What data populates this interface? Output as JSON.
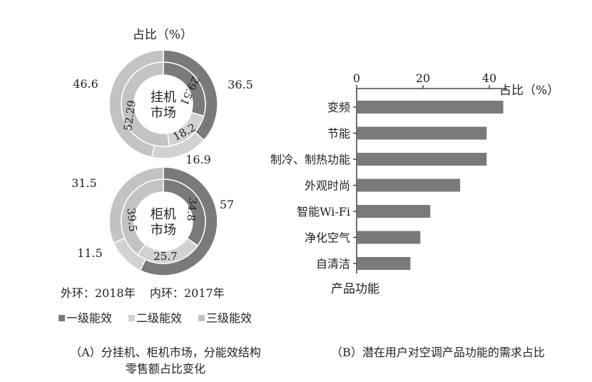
{
  "left": {
    "unit_label": "占比（%）",
    "outer_note": "外环：2018年",
    "inner_note": "内环：2017年",
    "legend": [
      "一级能效",
      "二级能效",
      "三级能效"
    ],
    "caption_line1": "（A）分挂机、柜机市场，分能效结构",
    "caption_line2": "零售额占比变化"
  },
  "right": {
    "caption": "（B）潜在用户对空调产品功能的需求占比"
  },
  "colors": {
    "level1": "#7a7a7a",
    "level2": "#d6d6d6",
    "level3": "#c3c3c3",
    "bar": "#7a7a7a"
  },
  "chart_data": [
    {
      "type": "pie",
      "variant": "donut",
      "center_label": "挂机\n市场",
      "categories": [
        "一级能效",
        "二级能效",
        "三级能效"
      ],
      "series": [
        {
          "name": "外环：2018年",
          "values": [
            36.5,
            16.9,
            46.6
          ],
          "labels": [
            "36.5",
            "16.9",
            "46.6"
          ]
        },
        {
          "name": "内环：2017年",
          "values": [
            29.51,
            18.2,
            52.29
          ],
          "labels": [
            "29.51",
            "18.2",
            "52.29"
          ]
        }
      ]
    },
    {
      "type": "pie",
      "variant": "donut",
      "center_label": "柜机\n市场",
      "categories": [
        "一级能效",
        "二级能效",
        "三级能效"
      ],
      "series": [
        {
          "name": "外环：2018年",
          "values": [
            57,
            11.5,
            31.5
          ],
          "labels": [
            "57",
            "11.5",
            "31.5"
          ]
        },
        {
          "name": "内环：2017年",
          "values": [
            34.8,
            25.7,
            39.5
          ],
          "labels": [
            "34.8",
            "25.7",
            "39.5"
          ]
        }
      ]
    },
    {
      "type": "bar",
      "orientation": "horizontal",
      "categories": [
        "变频",
        "节能",
        "制冷、制热功能",
        "外观时尚",
        "智能Wi-Fi",
        "净化空气",
        "自清洁"
      ],
      "values": [
        44,
        39,
        39,
        31,
        22,
        19,
        16
      ],
      "xlabel": "占比（%）",
      "ylabel": "产品功能",
      "xlim": [
        0,
        45
      ],
      "xticks": [
        "0",
        "20",
        "40"
      ],
      "grid": false
    }
  ]
}
